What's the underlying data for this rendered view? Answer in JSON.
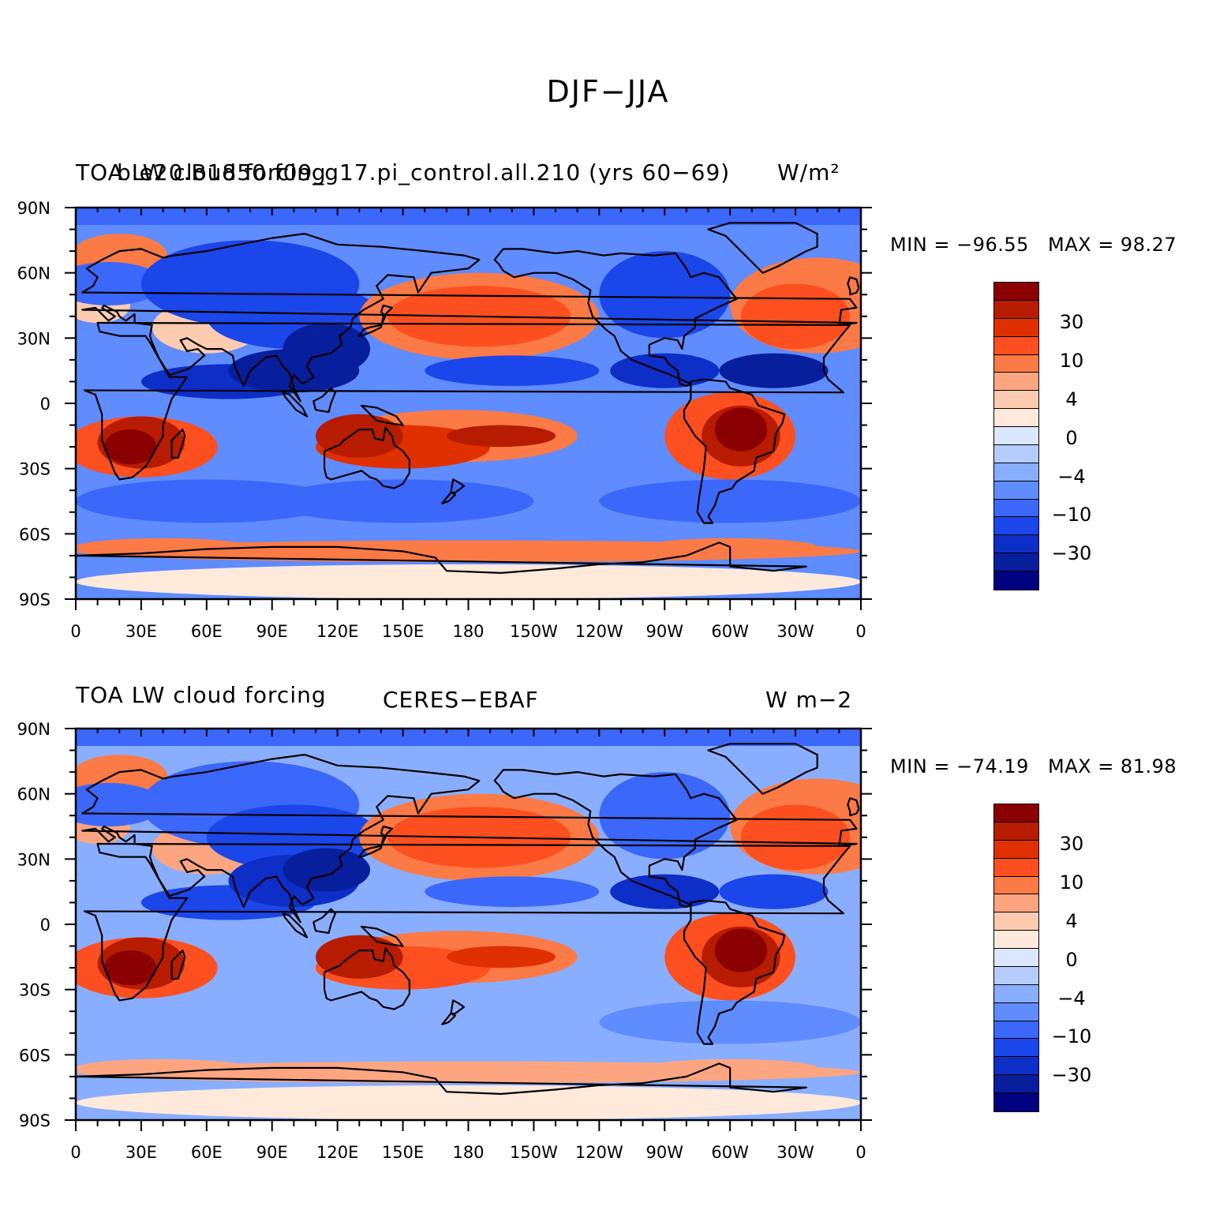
{
  "title": "DJF−JJA",
  "colors": {
    "levels": [
      "#8b0000",
      "#b71c00",
      "#e03000",
      "#fd4f1f",
      "#fb7a45",
      "#fca580",
      "#fdcbb0",
      "#fee9db",
      "#dbe8ff",
      "#b6ccff",
      "#8aaeff",
      "#5f8cff",
      "#3b67fb",
      "#1b46ea",
      "#0d2ec7",
      "#071f9c",
      "#000080"
    ],
    "coastline": "#000000",
    "background": "#ffffff"
  },
  "colorbar": {
    "labels": [
      "30",
      "10",
      "4",
      "0",
      "−4",
      "−10",
      "−30"
    ]
  },
  "axes": {
    "lat_labels": [
      "90N",
      "60N",
      "30N",
      "0",
      "30S",
      "60S",
      "90S"
    ],
    "lon_labels": [
      "0",
      "30E",
      "60E",
      "90E",
      "120E",
      "150E",
      "180",
      "150W",
      "120W",
      "90W",
      "60W",
      "30W",
      "0"
    ]
  },
  "panels": [
    {
      "left_title": "TOA LW cloud forcing",
      "center_title": "b.e20.B1850.f09_g17.pi_control.all.210 (yrs 60−69)",
      "units": "W/m²",
      "min_label": "MIN = −96.55",
      "max_label": "MAX =  98.27"
    },
    {
      "left_title": "TOA LW cloud forcing",
      "center_title": "CERES−EBAF",
      "units": "W m−2",
      "min_label": "MIN = −74.19",
      "max_label": "MAX =  81.98"
    }
  ]
}
